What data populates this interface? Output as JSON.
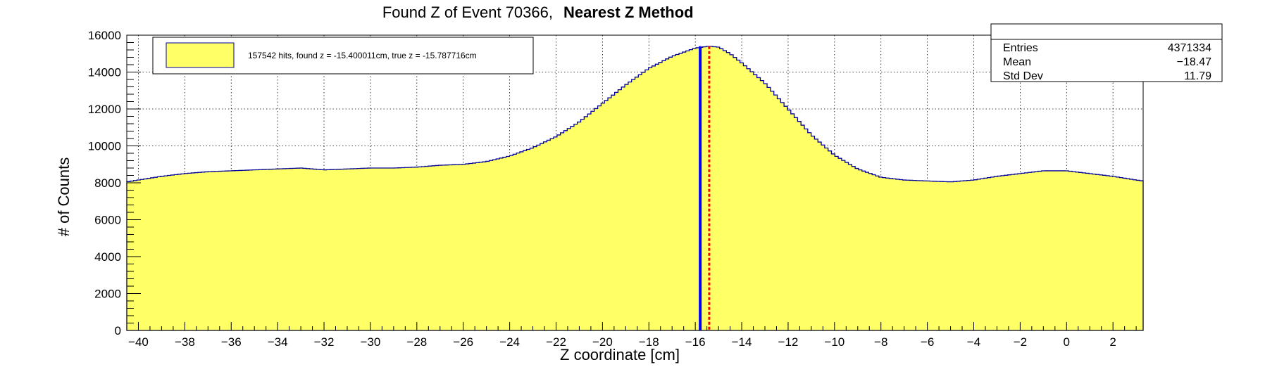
{
  "chart_data": {
    "type": "histogram",
    "title": "Found Z of Event 70366,",
    "title_method": "Nearest Z Method",
    "xlabel": "Z coordinate [cm]",
    "ylabel": "# of Counts",
    "xlim": [
      -40.5,
      3.3
    ],
    "ylim": [
      0,
      16000
    ],
    "x_ticks": [
      -40,
      -38,
      -36,
      -34,
      -32,
      -30,
      -28,
      -26,
      -24,
      -22,
      -20,
      -18,
      -16,
      -14,
      -12,
      -10,
      -8,
      -6,
      -4,
      -2,
      0,
      2
    ],
    "y_ticks": [
      0,
      2000,
      4000,
      6000,
      8000,
      10000,
      12000,
      14000,
      16000
    ],
    "grid": true,
    "fill_color": "#ffff66",
    "line_color": "#000099",
    "profile": [
      [
        -40.5,
        8050
      ],
      [
        -40,
        8150
      ],
      [
        -39,
        8350
      ],
      [
        -38,
        8500
      ],
      [
        -37,
        8600
      ],
      [
        -36,
        8650
      ],
      [
        -35,
        8700
      ],
      [
        -34,
        8750
      ],
      [
        -33,
        8800
      ],
      [
        -32,
        8700
      ],
      [
        -31,
        8750
      ],
      [
        -30,
        8800
      ],
      [
        -29,
        8800
      ],
      [
        -28,
        8850
      ],
      [
        -27,
        8950
      ],
      [
        -26,
        9000
      ],
      [
        -25,
        9150
      ],
      [
        -24,
        9450
      ],
      [
        -23,
        9900
      ],
      [
        -22,
        10500
      ],
      [
        -21,
        11300
      ],
      [
        -20,
        12300
      ],
      [
        -19,
        13300
      ],
      [
        -18,
        14200
      ],
      [
        -17,
        14850
      ],
      [
        -16,
        15300
      ],
      [
        -15.4,
        15400
      ],
      [
        -15,
        15350
      ],
      [
        -14.5,
        15000
      ],
      [
        -14,
        14500
      ],
      [
        -13,
        13400
      ],
      [
        -12,
        12000
      ],
      [
        -11,
        10600
      ],
      [
        -10,
        9500
      ],
      [
        -9,
        8750
      ],
      [
        -8,
        8300
      ],
      [
        -7,
        8150
      ],
      [
        -6,
        8100
      ],
      [
        -5,
        8050
      ],
      [
        -4,
        8150
      ],
      [
        -3,
        8350
      ],
      [
        -2,
        8500
      ],
      [
        -1,
        8650
      ],
      [
        0,
        8650
      ],
      [
        1,
        8500
      ],
      [
        2,
        8350
      ],
      [
        3,
        8150
      ],
      [
        3.3,
        8100
      ]
    ],
    "found_z": -15.400011,
    "true_z": -15.787716,
    "found_line_color": "#ff0000",
    "true_line_color": "#0000ff",
    "legend": {
      "placement": "top-left",
      "text": "157542 hits, found z = -15.400011cm, true z = -15.787716cm",
      "swatch_color": "#ffff66"
    },
    "stats": {
      "placement": "top-right",
      "rows": [
        {
          "label": "Entries",
          "value": "4371334"
        },
        {
          "label": "Mean",
          "value": "−18.47"
        },
        {
          "label": "Std Dev",
          "value": "11.79"
        }
      ]
    }
  }
}
